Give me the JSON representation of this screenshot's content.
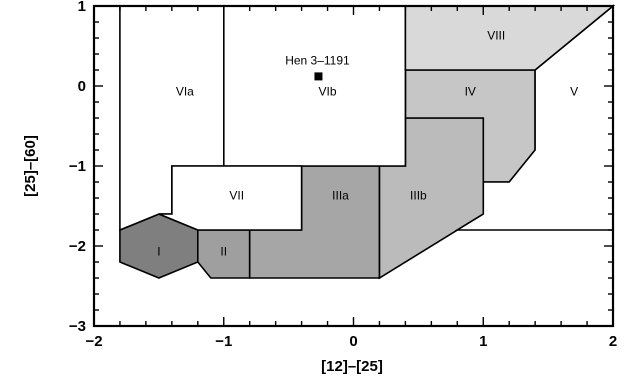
{
  "chart_data": {
    "type": "scatter",
    "xlabel": "[12]–[25]",
    "ylabel": "[25]–[60]",
    "xlim": [
      -2,
      2
    ],
    "ylim": [
      -3,
      1
    ],
    "x_ticks": [
      {
        "value": -2,
        "label": "−2"
      },
      {
        "value": -1,
        "label": "−1"
      },
      {
        "value": 0,
        "label": "0"
      },
      {
        "value": 1,
        "label": "1"
      },
      {
        "value": 2,
        "label": "2"
      }
    ],
    "y_ticks": [
      {
        "value": -3,
        "label": "−3"
      },
      {
        "value": -2,
        "label": "−2"
      },
      {
        "value": -1,
        "label": "−1"
      },
      {
        "value": 0,
        "label": "0"
      },
      {
        "value": 1,
        "label": "1"
      }
    ],
    "grid": false,
    "regions": [
      {
        "id": "I",
        "label": "I",
        "fill": "#7f7f7f",
        "points": [
          [
            -1.8,
            -1.8
          ],
          [
            -1.5,
            -1.6
          ],
          [
            -1.2,
            -1.8
          ],
          [
            -1.2,
            -2.2
          ],
          [
            -1.5,
            -2.4
          ],
          [
            -1.8,
            -2.2
          ]
        ],
        "label_at": [
          -1.5,
          -2.12
        ]
      },
      {
        "id": "II",
        "label": "II",
        "fill": "#9f9f9f",
        "points": [
          [
            -1.2,
            -1.8
          ],
          [
            -0.8,
            -1.8
          ],
          [
            -0.8,
            -2.4
          ],
          [
            -1.1,
            -2.4
          ],
          [
            -1.2,
            -2.2
          ]
        ],
        "label_at": [
          -1.0,
          -2.12
        ]
      },
      {
        "id": "IIIa",
        "label": "IIIa",
        "fill": "#a6a6a6",
        "points": [
          [
            -0.8,
            -1.8
          ],
          [
            -0.4,
            -1.8
          ],
          [
            -0.4,
            -1.0
          ],
          [
            0.2,
            -1.0
          ],
          [
            0.2,
            -2.4
          ],
          [
            -0.8,
            -2.4
          ]
        ],
        "label_at": [
          -0.1,
          -1.42
        ]
      },
      {
        "id": "IIIb",
        "label": "IIIb",
        "fill": "#bbbbbb",
        "points": [
          [
            0.2,
            -1.0
          ],
          [
            0.4,
            -1.0
          ],
          [
            0.4,
            -0.4
          ],
          [
            1.0,
            -0.4
          ],
          [
            1.0,
            -1.6
          ],
          [
            0.2,
            -2.4
          ]
        ],
        "label_at": [
          0.5,
          -1.42
        ]
      },
      {
        "id": "IV",
        "label": "IV",
        "fill": "#c6c6c6",
        "points": [
          [
            0.4,
            -0.4
          ],
          [
            0.4,
            0.2
          ],
          [
            1.4,
            0.2
          ],
          [
            1.4,
            -0.8
          ],
          [
            1.2,
            -1.2
          ],
          [
            1.0,
            -1.2
          ],
          [
            1.0,
            -0.4
          ]
        ],
        "label_at": [
          0.9,
          -0.12
        ]
      },
      {
        "id": "V",
        "label": "V",
        "fill": "#ffffff",
        "points": [
          [
            1.4,
            0.2
          ],
          [
            2.0,
            1.0
          ],
          [
            2.0,
            -1.8
          ],
          [
            0.8,
            -1.8
          ],
          [
            1.0,
            -1.6
          ],
          [
            1.0,
            -1.2
          ],
          [
            1.2,
            -1.2
          ],
          [
            1.4,
            -0.8
          ]
        ],
        "label_at": [
          1.7,
          -0.12
        ]
      },
      {
        "id": "VIa",
        "label": "VIa",
        "fill": "#ffffff",
        "points": [
          [
            -1.8,
            1.0
          ],
          [
            -1.0,
            1.0
          ],
          [
            -1.0,
            -1.0
          ],
          [
            -1.4,
            -1.0
          ],
          [
            -1.4,
            -1.6
          ],
          [
            -1.5,
            -1.6
          ],
          [
            -1.8,
            -1.8
          ]
        ],
        "label_at": [
          -1.3,
          -0.12
        ]
      },
      {
        "id": "VIb",
        "label": "VIb",
        "fill": "#ffffff",
        "points": [
          [
            -1.0,
            1.0
          ],
          [
            0.4,
            1.0
          ],
          [
            0.4,
            -1.0
          ],
          [
            -1.0,
            -1.0
          ]
        ],
        "label_at": [
          -0.2,
          -0.12
        ]
      },
      {
        "id": "VII",
        "label": "VII",
        "fill": "#ffffff",
        "points": [
          [
            -1.4,
            -1.0
          ],
          [
            -0.4,
            -1.0
          ],
          [
            -0.4,
            -1.8
          ],
          [
            -1.2,
            -1.8
          ],
          [
            -1.5,
            -1.6
          ],
          [
            -1.4,
            -1.6
          ]
        ],
        "label_at": [
          -0.9,
          -1.42
        ]
      },
      {
        "id": "VIII",
        "label": "VIII",
        "fill": "#d9d9d9",
        "points": [
          [
            0.4,
            1.0
          ],
          [
            2.0,
            1.0
          ],
          [
            1.4,
            0.2
          ],
          [
            0.4,
            0.2
          ]
        ],
        "label_at": [
          1.1,
          0.58
        ]
      }
    ],
    "points": [
      {
        "name": "Hen 3–1191",
        "x": -0.27,
        "y": 0.12,
        "marker": "square"
      }
    ]
  }
}
